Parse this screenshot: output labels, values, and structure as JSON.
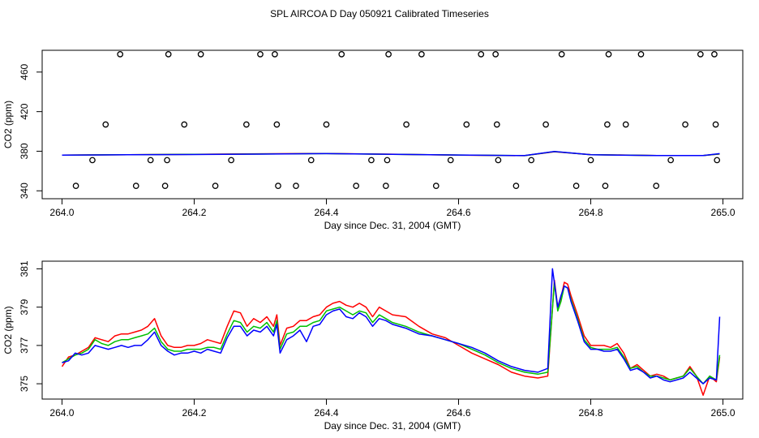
{
  "chart_data": {
    "title": "SPL AIRCOA D  Day 050921  Calibrated Timeseries",
    "panels": [
      {
        "type": "scatter+line",
        "xlabel": "Day since Dec. 31, 2004 (GMT)",
        "ylabel": "CO2 (ppm)",
        "xlim": [
          263.97,
          265.03
        ],
        "ylim": [
          332,
          482
        ],
        "xticks": [
          264.0,
          264.2,
          264.4,
          264.6,
          264.8,
          265.0
        ],
        "xtick_labels": [
          "264.0",
          "264.2",
          "264.4",
          "264.6",
          "264.8",
          "265.0"
        ],
        "yticks": [
          340,
          380,
          420,
          460
        ],
        "ytick_labels": [
          "340",
          "380",
          "420",
          "460"
        ],
        "calibration_points": {
          "x": [
            264.021,
            264.046,
            264.066,
            264.088,
            264.112,
            264.134,
            264.156,
            264.159,
            264.161,
            264.185,
            264.21,
            264.232,
            264.256,
            264.279,
            264.3,
            264.322,
            264.325,
            264.327,
            264.354,
            264.377,
            264.4,
            264.423,
            264.445,
            264.468,
            264.49,
            264.492,
            264.494,
            264.521,
            264.544,
            264.566,
            264.588,
            264.612,
            264.634,
            264.656,
            264.658,
            264.66,
            264.687,
            264.71,
            264.732,
            264.756,
            264.778,
            264.8,
            264.822,
            264.825,
            264.827,
            264.853,
            264.876,
            264.899,
            264.921,
            264.943,
            264.966,
            264.987,
            264.989,
            264.991
          ],
          "y": [
            345,
            371,
            407,
            478,
            345,
            371,
            345,
            371,
            478,
            407,
            478,
            345,
            371,
            407,
            478,
            478,
            407,
            345,
            345,
            371,
            407,
            478,
            345,
            371,
            345,
            371,
            478,
            407,
            478,
            345,
            371,
            407,
            478,
            478,
            407,
            371,
            345,
            371,
            407,
            478,
            345,
            371,
            345,
            407,
            478,
            407,
            478,
            345,
            371,
            407,
            478,
            478,
            407,
            371
          ]
        },
        "series": [
          {
            "name": "red",
            "color": "#ff0000",
            "x": [
              264.0,
              264.1,
              264.2,
              264.3,
              264.4,
              264.5,
              264.6,
              264.7,
              264.745,
              264.8,
              264.9,
              264.97,
              264.995
            ],
            "values": [
              376.0,
              376.5,
              376.9,
              377.4,
              377.7,
              377.0,
              376.0,
              375.5,
              379.5,
              376.6,
              375.7,
              375.6,
              377.2
            ]
          },
          {
            "name": "green",
            "color": "#00c000",
            "x": [
              264.0,
              264.1,
              264.2,
              264.3,
              264.4,
              264.5,
              264.6,
              264.7,
              264.745,
              264.8,
              264.9,
              264.97,
              264.995
            ],
            "values": [
              376.1,
              376.5,
              376.8,
              377.2,
              377.6,
              376.9,
              376.2,
              375.5,
              379.6,
              376.5,
              375.7,
              375.7,
              377.3
            ]
          },
          {
            "name": "blue",
            "color": "#0000ff",
            "x": [
              264.0,
              264.1,
              264.2,
              264.3,
              264.4,
              264.5,
              264.6,
              264.7,
              264.745,
              264.8,
              264.9,
              264.97,
              264.995
            ],
            "values": [
              376.1,
              376.4,
              376.7,
              377.1,
              377.6,
              376.9,
              376.2,
              375.6,
              379.8,
              376.4,
              375.6,
              375.7,
              377.6
            ]
          }
        ]
      },
      {
        "type": "line",
        "xlabel": "Day since Dec. 31, 2004 (GMT)",
        "ylabel": "CO2 (ppm)",
        "xlim": [
          263.97,
          265.03
        ],
        "ylim": [
          374.2,
          381.4
        ],
        "xticks": [
          264.0,
          264.2,
          264.4,
          264.6,
          264.8,
          265.0
        ],
        "xtick_labels": [
          "264.0",
          "264.2",
          "264.4",
          "264.6",
          "264.8",
          "265.0"
        ],
        "yticks": [
          375,
          377,
          379,
          381
        ],
        "ytick_labels": [
          "375",
          "377",
          "379",
          "381"
        ],
        "series": [
          {
            "name": "red",
            "color": "#ff0000",
            "x": [
              264.0,
              264.01,
              264.02,
              264.03,
              264.04,
              264.05,
              264.06,
              264.07,
              264.08,
              264.09,
              264.1,
              264.11,
              264.12,
              264.13,
              264.14,
              264.15,
              264.16,
              264.17,
              264.18,
              264.19,
              264.2,
              264.21,
              264.22,
              264.23,
              264.24,
              264.25,
              264.26,
              264.27,
              264.28,
              264.29,
              264.3,
              264.31,
              264.32,
              264.325,
              264.33,
              264.34,
              264.35,
              264.36,
              264.37,
              264.38,
              264.39,
              264.4,
              264.41,
              264.42,
              264.43,
              264.44,
              264.45,
              264.46,
              264.47,
              264.48,
              264.49,
              264.5,
              264.52,
              264.54,
              264.56,
              264.58,
              264.6,
              264.62,
              264.64,
              264.66,
              264.68,
              264.7,
              264.72,
              264.735,
              264.745,
              264.75,
              264.755,
              264.76,
              264.765,
              264.77,
              264.78,
              264.79,
              264.8,
              264.81,
              264.82,
              264.83,
              264.84,
              264.85,
              264.86,
              264.87,
              264.88,
              264.89,
              264.9,
              264.91,
              264.92,
              264.93,
              264.94,
              264.95,
              264.96,
              264.97,
              264.98,
              264.99,
              264.995
            ],
            "values": [
              375.9,
              376.4,
              376.5,
              376.7,
              376.9,
              377.4,
              377.3,
              377.2,
              377.5,
              377.6,
              377.6,
              377.7,
              377.8,
              378.0,
              378.4,
              377.5,
              377.0,
              376.9,
              376.9,
              377.0,
              377.0,
              377.1,
              377.3,
              377.2,
              377.1,
              378.0,
              378.8,
              378.7,
              378.0,
              378.4,
              378.2,
              378.5,
              378.0,
              378.6,
              377.0,
              377.9,
              378.0,
              378.3,
              378.3,
              378.5,
              378.6,
              379.0,
              379.2,
              379.3,
              379.1,
              379.0,
              379.2,
              379.0,
              378.5,
              379.0,
              378.8,
              378.6,
              378.5,
              378.0,
              377.6,
              377.4,
              377.0,
              376.6,
              376.3,
              376.0,
              375.6,
              375.4,
              375.3,
              375.4,
              380.4,
              379.0,
              379.5,
              380.3,
              380.2,
              379.6,
              378.6,
              377.5,
              377.0,
              377.0,
              377.0,
              376.9,
              377.1,
              376.6,
              375.8,
              376.0,
              375.7,
              375.4,
              375.5,
              375.4,
              375.2,
              375.3,
              375.4,
              375.9,
              375.4,
              374.4,
              375.4,
              375.1,
              376.4
            ]
          },
          {
            "name": "green",
            "color": "#00c000",
            "x": [
              264.0,
              264.01,
              264.02,
              264.03,
              264.04,
              264.05,
              264.06,
              264.07,
              264.08,
              264.09,
              264.1,
              264.11,
              264.12,
              264.13,
              264.14,
              264.15,
              264.16,
              264.17,
              264.18,
              264.19,
              264.2,
              264.21,
              264.22,
              264.23,
              264.24,
              264.25,
              264.26,
              264.27,
              264.28,
              264.29,
              264.3,
              264.31,
              264.32,
              264.325,
              264.33,
              264.34,
              264.35,
              264.36,
              264.37,
              264.38,
              264.39,
              264.4,
              264.41,
              264.42,
              264.43,
              264.44,
              264.45,
              264.46,
              264.47,
              264.48,
              264.49,
              264.5,
              264.52,
              264.54,
              264.56,
              264.58,
              264.6,
              264.62,
              264.64,
              264.66,
              264.68,
              264.7,
              264.72,
              264.735,
              264.745,
              264.75,
              264.755,
              264.76,
              264.765,
              264.77,
              264.78,
              264.79,
              264.8,
              264.81,
              264.82,
              264.83,
              264.84,
              264.85,
              264.86,
              264.87,
              264.88,
              264.89,
              264.9,
              264.91,
              264.92,
              264.93,
              264.94,
              264.95,
              264.96,
              264.97,
              264.98,
              264.99,
              264.995
            ],
            "values": [
              376.1,
              376.3,
              376.5,
              376.6,
              376.8,
              377.3,
              377.1,
              377.0,
              377.2,
              377.3,
              377.3,
              377.4,
              377.5,
              377.6,
              377.9,
              377.2,
              376.8,
              376.7,
              376.7,
              376.8,
              376.8,
              376.8,
              376.9,
              376.9,
              376.8,
              377.6,
              378.3,
              378.2,
              377.7,
              378.0,
              377.9,
              378.2,
              377.7,
              378.3,
              376.8,
              377.6,
              377.7,
              378.0,
              378.0,
              378.2,
              378.3,
              378.8,
              378.9,
              379.0,
              378.8,
              378.6,
              378.8,
              378.7,
              378.2,
              378.6,
              378.4,
              378.2,
              378.0,
              377.7,
              377.5,
              377.3,
              377.1,
              376.8,
              376.5,
              376.1,
              375.8,
              375.6,
              375.5,
              375.6,
              380.3,
              378.8,
              379.3,
              380.1,
              380.0,
              379.4,
              378.4,
              377.3,
              376.9,
              376.8,
              376.8,
              376.8,
              376.9,
              376.4,
              375.8,
              375.9,
              375.6,
              375.4,
              375.4,
              375.3,
              375.2,
              375.3,
              375.4,
              375.8,
              375.4,
              375.0,
              375.4,
              375.2,
              376.5
            ]
          },
          {
            "name": "blue",
            "color": "#0000ff",
            "x": [
              264.0,
              264.01,
              264.02,
              264.03,
              264.04,
              264.05,
              264.06,
              264.07,
              264.08,
              264.09,
              264.1,
              264.11,
              264.12,
              264.13,
              264.14,
              264.15,
              264.16,
              264.17,
              264.18,
              264.19,
              264.2,
              264.21,
              264.22,
              264.23,
              264.24,
              264.25,
              264.26,
              264.27,
              264.28,
              264.29,
              264.3,
              264.31,
              264.32,
              264.325,
              264.33,
              264.34,
              264.35,
              264.36,
              264.37,
              264.38,
              264.39,
              264.4,
              264.41,
              264.42,
              264.43,
              264.44,
              264.45,
              264.46,
              264.47,
              264.48,
              264.49,
              264.5,
              264.52,
              264.54,
              264.56,
              264.58,
              264.6,
              264.62,
              264.64,
              264.66,
              264.68,
              264.7,
              264.72,
              264.735,
              264.742,
              264.75,
              264.755,
              264.76,
              264.765,
              264.77,
              264.78,
              264.79,
              264.8,
              264.81,
              264.82,
              264.83,
              264.84,
              264.85,
              264.86,
              264.87,
              264.88,
              264.89,
              264.9,
              264.91,
              264.92,
              264.93,
              264.94,
              264.95,
              264.96,
              264.97,
              264.98,
              264.99,
              264.995
            ],
            "values": [
              376.1,
              376.2,
              376.6,
              376.5,
              376.6,
              377.0,
              376.9,
              376.8,
              376.9,
              377.0,
              376.9,
              377.0,
              377.0,
              377.3,
              377.7,
              377.0,
              376.7,
              376.5,
              376.6,
              376.6,
              376.7,
              376.6,
              376.8,
              376.7,
              376.6,
              377.4,
              378.0,
              378.0,
              377.5,
              377.8,
              377.7,
              378.0,
              377.5,
              378.1,
              376.6,
              377.3,
              377.5,
              377.8,
              377.2,
              378.0,
              378.1,
              378.6,
              378.8,
              378.9,
              378.5,
              378.4,
              378.7,
              378.5,
              378.0,
              378.4,
              378.3,
              378.1,
              377.9,
              377.6,
              377.5,
              377.3,
              377.1,
              376.9,
              376.6,
              376.2,
              375.9,
              375.7,
              375.6,
              375.8,
              381.0,
              379.0,
              379.6,
              380.1,
              380.0,
              379.3,
              378.3,
              377.2,
              376.8,
              376.8,
              376.7,
              376.7,
              376.8,
              376.3,
              375.7,
              375.8,
              375.6,
              375.3,
              375.4,
              375.2,
              375.1,
              375.2,
              375.3,
              375.6,
              375.3,
              375.0,
              375.3,
              375.2,
              378.5
            ]
          }
        ]
      }
    ]
  }
}
